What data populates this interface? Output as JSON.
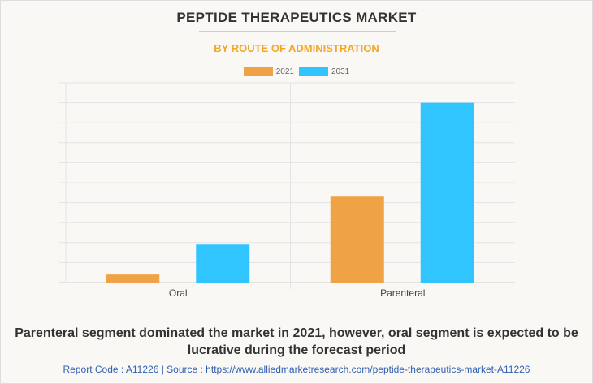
{
  "title": "PEPTIDE THERAPEUTICS MARKET",
  "subtitle": "BY ROUTE OF ADMINISTRATION",
  "caption_line1": "Parenteral segment dominated the market in 2021, however, oral segment is expected to be",
  "caption_line2": "lucrative during the forecast period",
  "footer": "Report Code : A11226  |  Source : https://www.alliedmarketresearch.com/peptide-therapeutics-market-A11226",
  "chart_data": {
    "type": "bar",
    "categories": [
      "Oral",
      "Parenteral"
    ],
    "series": [
      {
        "name": "2021",
        "color": "#f0a346",
        "values": [
          0.4,
          4.3
        ]
      },
      {
        "name": "2031",
        "color": "#30c5ff",
        "values": [
          1.9,
          9.0
        ]
      }
    ],
    "ylim": [
      0,
      10
    ],
    "grid": true,
    "legend": "top-center",
    "y_tick_labels_shown": false
  }
}
